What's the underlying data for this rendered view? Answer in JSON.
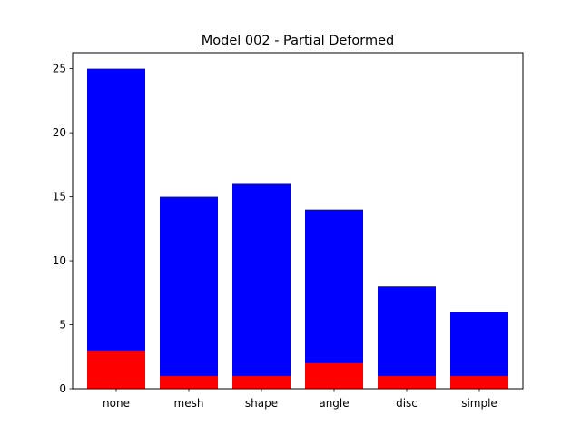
{
  "chart_data": {
    "type": "bar",
    "title": "Model 002 - Partial Deformed",
    "xlabel": "",
    "ylabel": "",
    "categories": [
      "none",
      "mesh",
      "shape",
      "angle",
      "disc",
      "simple"
    ],
    "series": [
      {
        "values": [
          25,
          15,
          16,
          14,
          8,
          6
        ],
        "color": "#0000ff"
      },
      {
        "values": [
          3,
          1,
          1,
          2,
          1,
          1
        ],
        "color": "#ff0000"
      }
    ],
    "overlay": true,
    "ylim": [
      0,
      26.25
    ],
    "yticks": [
      0,
      5,
      10,
      15,
      20,
      25
    ],
    "grid": false,
    "legend": "none"
  }
}
